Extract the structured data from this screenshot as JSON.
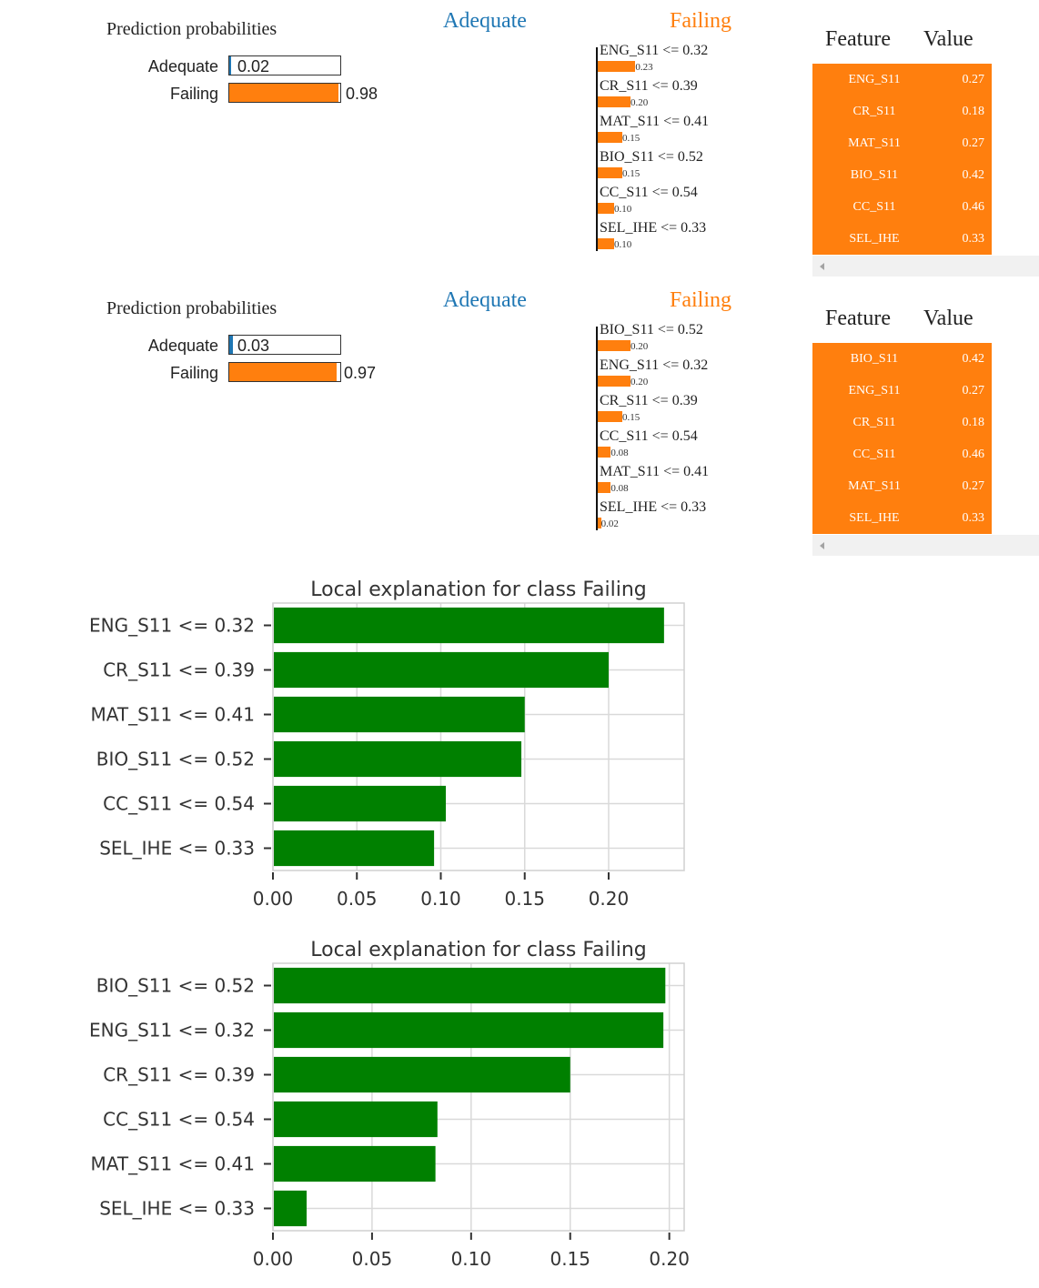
{
  "panels": [
    {
      "prediction_title": "Prediction probabilities",
      "probs": [
        {
          "label": "Adequate",
          "value": "0.02",
          "fraction": 0.02,
          "color": "#1f77b4"
        },
        {
          "label": "Failing",
          "value": "0.98",
          "fraction": 0.98,
          "color": "#ff7f0e"
        }
      ],
      "class_left": "Adequate",
      "class_right": "Failing",
      "features": [
        {
          "name": "ENG_S11 <= 0.32",
          "weight": "0.23",
          "w": 0.23
        },
        {
          "name": "CR_S11 <= 0.39",
          "weight": "0.20",
          "w": 0.2
        },
        {
          "name": "MAT_S11 <= 0.41",
          "weight": "0.15",
          "w": 0.15
        },
        {
          "name": "BIO_S11 <= 0.52",
          "weight": "0.15",
          "w": 0.15
        },
        {
          "name": "CC_S11 <= 0.54",
          "weight": "0.10",
          "w": 0.1
        },
        {
          "name": "SEL_IHE <= 0.33",
          "weight": "0.10",
          "w": 0.1
        }
      ],
      "table": {
        "col_feature": "Feature",
        "col_value": "Value",
        "rows": [
          {
            "feature": "ENG_S11",
            "value": "0.27"
          },
          {
            "feature": "CR_S11",
            "value": "0.18"
          },
          {
            "feature": "MAT_S11",
            "value": "0.27"
          },
          {
            "feature": "BIO_S11",
            "value": "0.42"
          },
          {
            "feature": "CC_S11",
            "value": "0.46"
          },
          {
            "feature": "SEL_IHE",
            "value": "0.33"
          }
        ]
      }
    },
    {
      "prediction_title": "Prediction probabilities",
      "probs": [
        {
          "label": "Adequate",
          "value": "0.03",
          "fraction": 0.03,
          "color": "#1f77b4"
        },
        {
          "label": "Failing",
          "value": "0.97",
          "fraction": 0.97,
          "color": "#ff7f0e"
        }
      ],
      "class_left": "Adequate",
      "class_right": "Failing",
      "features": [
        {
          "name": "BIO_S11 <= 0.52",
          "weight": "0.20",
          "w": 0.2
        },
        {
          "name": "ENG_S11 <= 0.32",
          "weight": "0.20",
          "w": 0.2
        },
        {
          "name": "CR_S11 <= 0.39",
          "weight": "0.15",
          "w": 0.15
        },
        {
          "name": "CC_S11 <= 0.54",
          "weight": "0.08",
          "w": 0.08
        },
        {
          "name": "MAT_S11 <= 0.41",
          "weight": "0.08",
          "w": 0.08
        },
        {
          "name": "SEL_IHE <= 0.33",
          "weight": "0.02",
          "w": 0.02
        }
      ],
      "table": {
        "col_feature": "Feature",
        "col_value": "Value",
        "rows": [
          {
            "feature": "BIO_S11",
            "value": "0.42"
          },
          {
            "feature": "ENG_S11",
            "value": "0.27"
          },
          {
            "feature": "CR_S11",
            "value": "0.18"
          },
          {
            "feature": "CC_S11",
            "value": "0.46"
          },
          {
            "feature": "MAT_S11",
            "value": "0.27"
          },
          {
            "feature": "SEL_IHE",
            "value": "0.33"
          }
        ]
      }
    }
  ],
  "colors": {
    "adequate": "#1f77b4",
    "failing": "#ff7f0e",
    "bar_green": "#008000"
  },
  "chart_data": [
    {
      "type": "bar",
      "orientation": "horizontal",
      "title": "Local explanation for class Failing",
      "categories": [
        "ENG_S11 <= 0.32",
        "CR_S11 <= 0.39",
        "MAT_S11 <= 0.41",
        "BIO_S11 <= 0.52",
        "CC_S11 <= 0.54",
        "SEL_IHE <= 0.33"
      ],
      "values": [
        0.233,
        0.2,
        0.15,
        0.148,
        0.103,
        0.096
      ],
      "xticks": [
        "0.00",
        "0.05",
        "0.10",
        "0.15",
        "0.20"
      ],
      "xlim": [
        0,
        0.245
      ],
      "grid": true
    },
    {
      "type": "bar",
      "orientation": "horizontal",
      "title": "Local explanation for class Failing",
      "categories": [
        "BIO_S11 <= 0.52",
        "ENG_S11 <= 0.32",
        "CR_S11 <= 0.39",
        "CC_S11 <= 0.54",
        "MAT_S11 <= 0.41",
        "SEL_IHE <= 0.33"
      ],
      "values": [
        0.198,
        0.197,
        0.15,
        0.083,
        0.082,
        0.017
      ],
      "xticks": [
        "0.00",
        "0.05",
        "0.10",
        "0.15",
        "0.20"
      ],
      "xlim": [
        0,
        0.2075
      ],
      "grid": true
    }
  ]
}
